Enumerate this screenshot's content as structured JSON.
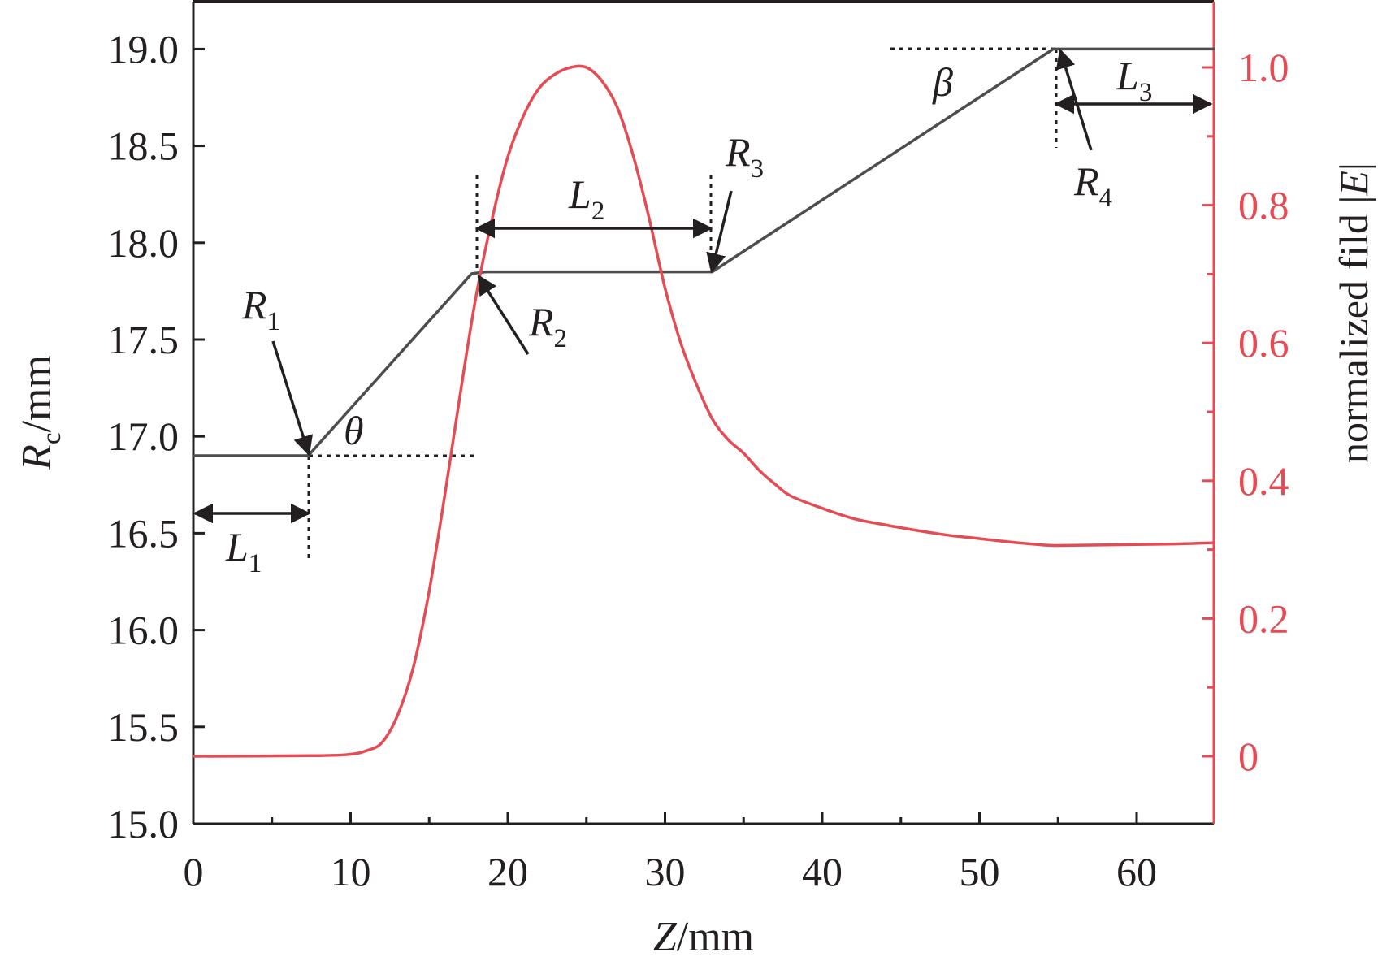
{
  "chart_data": {
    "type": "line",
    "xlabel": {
      "var": "Z",
      "unit": "/mm"
    },
    "ylabel_left": {
      "var": "R",
      "sub": "c",
      "unit": "/mm"
    },
    "ylabel_right": {
      "text": "normalized fild |",
      "var": "E",
      "close": "|"
    },
    "xlim": [
      0,
      65
    ],
    "ylim_left": [
      15.0,
      19.25
    ],
    "ylim_right": [
      -0.1,
      1.1
    ],
    "x_ticks": [
      "0",
      "10",
      "20",
      "30",
      "40",
      "50",
      "60"
    ],
    "x_tick_values": [
      0,
      10,
      20,
      30,
      40,
      50,
      60
    ],
    "y_left_ticks": [
      "15.0",
      "15.5",
      "16.0",
      "16.5",
      "17.0",
      "17.5",
      "18.0",
      "18.5",
      "19.0"
    ],
    "y_left_tick_values": [
      15.0,
      15.5,
      16.0,
      16.5,
      17.0,
      17.5,
      18.0,
      18.5,
      19.0
    ],
    "y_right_ticks": [
      "0",
      "0.2",
      "0.4",
      "0.6",
      "0.8",
      "1.0"
    ],
    "y_right_tick_values": [
      0,
      0.2,
      0.4,
      0.6,
      0.8,
      1.0
    ],
    "grid": false,
    "colors": {
      "profile": "#4d4d4f",
      "field": "#e34c55",
      "axis": "#231f20",
      "right_axis": "#e34c55"
    },
    "series": [
      {
        "axis": "left",
        "values": [
          [
            0,
            16.9
          ],
          [
            7.3,
            16.9
          ],
          [
            17.7,
            17.84
          ],
          [
            18.6,
            17.85
          ],
          [
            33.0,
            17.85
          ],
          [
            54.7,
            19.0
          ],
          [
            65,
            19.0
          ]
        ]
      },
      {
        "axis": "right",
        "values": [
          [
            0,
            0
          ],
          [
            8,
            0.001
          ],
          [
            10,
            0.003
          ],
          [
            11,
            0.008
          ],
          [
            12,
            0.02
          ],
          [
            13,
            0.06
          ],
          [
            14,
            0.13
          ],
          [
            15,
            0.24
          ],
          [
            16,
            0.38
          ],
          [
            17,
            0.53
          ],
          [
            18,
            0.67
          ],
          [
            19,
            0.78
          ],
          [
            20,
            0.87
          ],
          [
            21,
            0.93
          ],
          [
            22,
            0.97
          ],
          [
            23,
            0.99
          ],
          [
            24,
            1.0
          ],
          [
            25,
            1.0
          ],
          [
            26,
            0.98
          ],
          [
            27,
            0.94
          ],
          [
            28,
            0.87
          ],
          [
            29,
            0.78
          ],
          [
            30,
            0.68
          ],
          [
            31,
            0.6
          ],
          [
            32,
            0.54
          ],
          [
            33,
            0.49
          ],
          [
            34,
            0.46
          ],
          [
            35,
            0.44
          ],
          [
            36,
            0.415
          ],
          [
            37,
            0.395
          ],
          [
            38,
            0.378
          ],
          [
            40,
            0.36
          ],
          [
            42,
            0.345
          ],
          [
            44,
            0.336
          ],
          [
            46,
            0.328
          ],
          [
            48,
            0.321
          ],
          [
            50,
            0.316
          ],
          [
            52,
            0.311
          ],
          [
            54,
            0.307
          ],
          [
            55,
            0.306
          ],
          [
            58,
            0.307
          ],
          [
            62,
            0.308
          ],
          [
            65,
            0.31
          ]
        ]
      }
    ],
    "annotations": [
      {
        "var": "R",
        "sub": "1"
      },
      {
        "var": "R",
        "sub": "2"
      },
      {
        "var": "R",
        "sub": "3"
      },
      {
        "var": "R",
        "sub": "4"
      },
      {
        "var": "L",
        "sub": "1"
      },
      {
        "var": "L",
        "sub": "2"
      },
      {
        "var": "L",
        "sub": "3"
      },
      {
        "var": "θ",
        "sub": ""
      },
      {
        "var": "β",
        "sub": ""
      }
    ]
  }
}
